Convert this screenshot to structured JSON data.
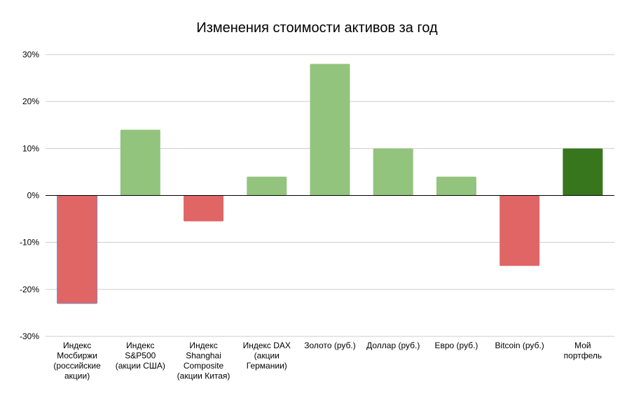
{
  "chart_data": {
    "type": "bar",
    "title": "Изменения стоимости активов за год",
    "xlabel": "",
    "ylabel": "",
    "ylim": [
      -30,
      30
    ],
    "y_ticks": [
      30,
      20,
      10,
      0,
      -10,
      -20,
      -30
    ],
    "y_tick_labels": [
      "30%",
      "20%",
      "10%",
      "0%",
      "-10%",
      "-20%",
      "-30%"
    ],
    "grid": true,
    "legend": "none",
    "categories": [
      [
        "Индекс",
        "Мосбиржи",
        "(российские",
        "акции)"
      ],
      [
        "Индекс",
        "S&P500",
        "(акции США)"
      ],
      [
        "Индекс",
        "Shanghai",
        "Composite",
        "(акции Китая)"
      ],
      [
        "Индекс DAX",
        "(акции",
        "Германии)"
      ],
      [
        "Золото (руб.)"
      ],
      [
        "Доллар (руб.)"
      ],
      [
        "Евро (руб.)"
      ],
      [
        "Bitcoin (руб.)"
      ],
      [
        "Мой",
        "портфель"
      ]
    ],
    "values": [
      -23,
      14,
      -5.5,
      4,
      28,
      10,
      4,
      -15,
      10
    ],
    "bar_colors": [
      "#e06666",
      "#93c47d",
      "#e06666",
      "#93c47d",
      "#93c47d",
      "#93c47d",
      "#93c47d",
      "#e06666",
      "#38761d"
    ],
    "colors": {
      "negative": "#e06666",
      "positive": "#93c47d",
      "portfolio": "#38761d",
      "gridline": "#cccccc",
      "zero_line": "#000000"
    }
  }
}
